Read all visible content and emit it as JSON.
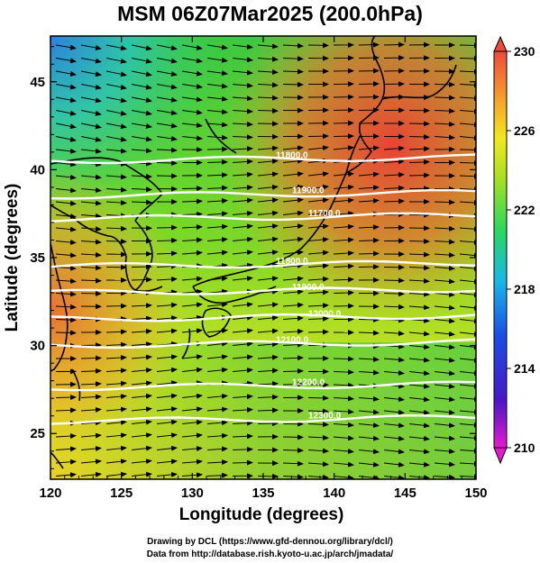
{
  "title": "MSM 06Z07Mar2025 (200.0hPa)",
  "map": {
    "xlabel": "Longitude (degrees)",
    "ylabel": "Latitude  (degrees)",
    "x_ticks": [
      "120",
      "125",
      "130",
      "135",
      "140",
      "145",
      "150"
    ],
    "y_ticks": [
      "25",
      "30",
      "35",
      "40",
      "45"
    ],
    "lon_range": [
      120,
      150
    ],
    "lat_range": [
      22.4,
      47.6
    ]
  },
  "colorbar": {
    "ticks": [
      "230",
      "226",
      "222",
      "218",
      "214",
      "210"
    ],
    "range": [
      210,
      230
    ]
  },
  "contours": [
    {
      "label": "11800.0",
      "lat": 40.5
    },
    {
      "label": "11900.0",
      "lat": 38.5
    },
    {
      "label": "11700.0",
      "lat": 37.2
    },
    {
      "label": "11800.0",
      "lat": 34.5
    },
    {
      "label": "11900.0",
      "lat": 33.0
    },
    {
      "label": "12000.0",
      "lat": 31.5
    },
    {
      "label": "12100.0",
      "lat": 30.0
    },
    {
      "label": "12200.0",
      "lat": 27.6
    },
    {
      "label": "12300.0",
      "lat": 25.7
    }
  ],
  "credits": {
    "line1": "Drawing by DCL (https://www.gfd-dennou.org/library/dcl/)",
    "line2": "Data from http://database.rish.kyoto-u.ac.jp/arch/jmadata/"
  }
}
